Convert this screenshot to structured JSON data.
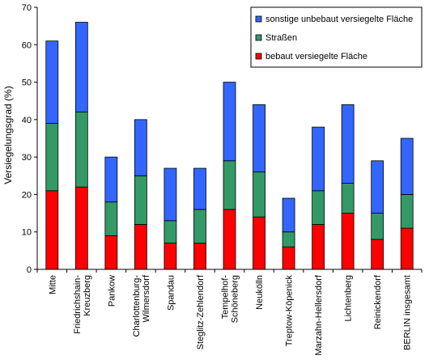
{
  "chart_data": {
    "type": "bar",
    "stacked": true,
    "title": "",
    "xlabel": "",
    "ylabel": "Versiegelungsgrad (%)",
    "ylim": [
      0,
      70
    ],
    "yticks": [
      0,
      10,
      20,
      30,
      40,
      50,
      60,
      70
    ],
    "grid": false,
    "legend_position": "top-right",
    "categories": [
      [
        "Mitte"
      ],
      [
        "Friedrichshain-",
        "Kreuzberg"
      ],
      [
        "Pankow"
      ],
      [
        "Charlottenburg-",
        "Wilmersdorf"
      ],
      [
        "Spandau"
      ],
      [
        "Steglitz-Zehlendorf"
      ],
      [
        "Tempelhof-",
        "Schöneberg"
      ],
      [
        "Neukölln"
      ],
      [
        "Treptow-Köpenick"
      ],
      [
        "Marzahn-Hellersdorf"
      ],
      [
        "Lichtenberg"
      ],
      [
        "Reinickendorf"
      ],
      [
        "BERLIN insgesamt"
      ]
    ],
    "series": [
      {
        "name": "bebaut versiegelte Fläche",
        "color": "#ff0000",
        "values": [
          21,
          22,
          9,
          12,
          7,
          7,
          16,
          14,
          6,
          12,
          15,
          8,
          11
        ]
      },
      {
        "name": "Straßen",
        "color": "#339966",
        "values": [
          18,
          20,
          9,
          13,
          6,
          9,
          13,
          12,
          4,
          9,
          8,
          7,
          9
        ]
      },
      {
        "name": "sonstige unbebaut versiegelte Fläche",
        "color": "#3366ff",
        "values": [
          22,
          24,
          12,
          15,
          14,
          11,
          21,
          18,
          9,
          17,
          21,
          14,
          15
        ]
      }
    ],
    "legend_order": [
      "sonstige unbebaut versiegelte Fläche",
      "Straßen",
      "bebaut versiegelte Fläche"
    ]
  }
}
